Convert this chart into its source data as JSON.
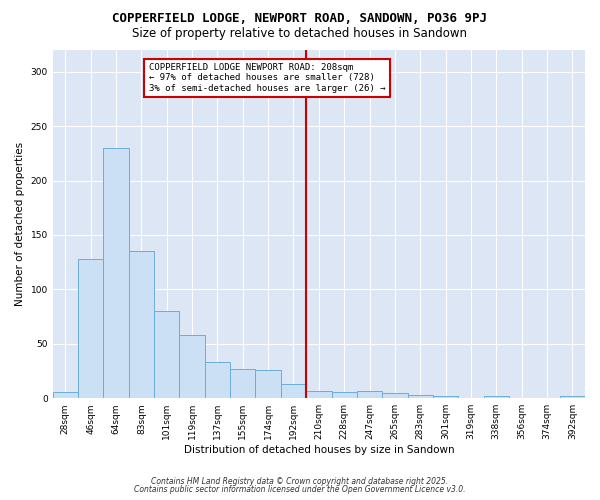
{
  "title": "COPPERFIELD LODGE, NEWPORT ROAD, SANDOWN, PO36 9PJ",
  "subtitle": "Size of property relative to detached houses in Sandown",
  "xlabel": "Distribution of detached houses by size in Sandown",
  "ylabel": "Number of detached properties",
  "categories": [
    "28sqm",
    "46sqm",
    "64sqm",
    "83sqm",
    "101sqm",
    "119sqm",
    "137sqm",
    "155sqm",
    "174sqm",
    "192sqm",
    "210sqm",
    "228sqm",
    "247sqm",
    "265sqm",
    "283sqm",
    "301sqm",
    "319sqm",
    "338sqm",
    "356sqm",
    "374sqm",
    "392sqm"
  ],
  "values": [
    6,
    128,
    230,
    135,
    80,
    58,
    33,
    27,
    26,
    13,
    7,
    6,
    7,
    5,
    3,
    2,
    0,
    2,
    0,
    0,
    2
  ],
  "bar_color": "#cce0f5",
  "bar_edge_color": "#6aaed6",
  "vline_color": "#cc0000",
  "annotation_text": "COPPERFIELD LODGE NEWPORT ROAD: 208sqm\n← 97% of detached houses are smaller (728)\n3% of semi-detached houses are larger (26) →",
  "annotation_box_color": "#ffffff",
  "annotation_box_edge": "#cc0000",
  "ylim": [
    0,
    320
  ],
  "yticks": [
    0,
    50,
    100,
    150,
    200,
    250,
    300
  ],
  "plot_bg_color": "#dce6f5",
  "fig_bg_color": "#ffffff",
  "footer1": "Contains HM Land Registry data © Crown copyright and database right 2025.",
  "footer2": "Contains public sector information licensed under the Open Government Licence v3.0.",
  "title_fontsize": 9,
  "subtitle_fontsize": 8.5,
  "axis_fontsize": 7.5,
  "tick_fontsize": 6.5,
  "annotation_fontsize": 6.5
}
